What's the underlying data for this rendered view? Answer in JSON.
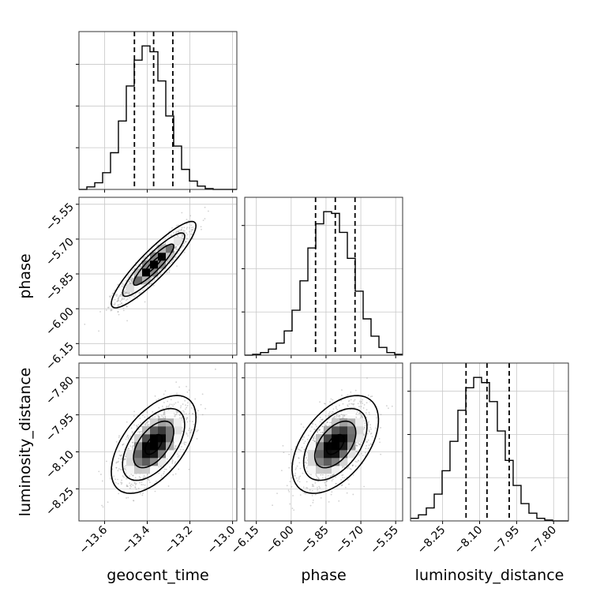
{
  "colors": {
    "background": "#ffffff",
    "axes_edge": "#333333",
    "grid": "#c8c8c8",
    "histogram": "#000000",
    "scatter": "#9a9a9a",
    "contour": "#000000",
    "quantile_line": "#000000"
  },
  "chart_data": {
    "type": "corner",
    "description_of_layout": "lower-triangular 3x3 grid",
    "grid": true,
    "parameters": [
      {
        "name": "geocent_time",
        "label": "geocent_time",
        "range": [
          -13.72,
          -12.98
        ],
        "ticks": [
          -13.6,
          -13.4,
          -13.2,
          -13.0
        ],
        "tick_labels": [
          "−13.6",
          "−13.4",
          "−13.2",
          "−13.0"
        ],
        "mean": -13.37,
        "sd": 0.08
      },
      {
        "name": "phase",
        "label": "phase",
        "range": [
          -6.2,
          -5.52
        ],
        "ticks": [
          -6.15,
          -6.0,
          -5.85,
          -5.7,
          -5.55
        ],
        "tick_labels": [
          "−6.15",
          "−6.00",
          "−5.85",
          "−5.70",
          "−5.55"
        ],
        "mean": -5.81,
        "sd": 0.075
      },
      {
        "name": "luminosity_distance",
        "label": "luminosity_distance",
        "range": [
          -8.38,
          -7.74
        ],
        "ticks": [
          -8.25,
          -8.1,
          -7.95,
          -7.8
        ],
        "tick_labels": [
          "−8.25",
          "−8.10",
          "−7.95",
          "−7.80"
        ],
        "mean": -8.07,
        "sd": 0.08
      }
    ],
    "quantiles": [
      {
        "param": "geocent_time",
        "values": [
          -13.46,
          -13.37,
          -13.28
        ]
      },
      {
        "param": "phase",
        "values": [
          -5.895,
          -5.81,
          -5.725
        ]
      },
      {
        "param": "luminosity_distance",
        "values": [
          -8.155,
          -8.07,
          -7.98
        ]
      }
    ],
    "histograms": [
      {
        "param": "geocent_time",
        "bin_edges": [
          -13.72,
          -13.683,
          -13.646,
          -13.609,
          -13.572,
          -13.535,
          -13.498,
          -13.461,
          -13.424,
          -13.387,
          -13.35,
          -13.313,
          -13.276,
          -13.239,
          -13.202,
          -13.165,
          -13.128,
          -13.091,
          -13.054,
          -13.017,
          -12.98
        ],
        "counts": [
          0,
          3,
          8,
          20,
          44,
          82,
          124,
          155,
          172,
          165,
          130,
          88,
          52,
          24,
          10,
          4,
          1,
          0,
          0,
          0
        ]
      },
      {
        "param": "phase",
        "bin_edges": [
          -6.2,
          -6.166,
          -6.132,
          -6.098,
          -6.064,
          -6.03,
          -5.996,
          -5.962,
          -5.928,
          -5.894,
          -5.86,
          -5.826,
          -5.792,
          -5.758,
          -5.724,
          -5.69,
          -5.656,
          -5.622,
          -5.588,
          -5.554,
          -5.52
        ],
        "counts": [
          0,
          1,
          3,
          7,
          14,
          28,
          52,
          86,
          124,
          152,
          166,
          164,
          142,
          112,
          74,
          42,
          22,
          9,
          3,
          1
        ]
      },
      {
        "param": "luminosity_distance",
        "bin_edges": [
          -8.38,
          -8.348,
          -8.316,
          -8.284,
          -8.252,
          -8.22,
          -8.188,
          -8.156,
          -8.124,
          -8.092,
          -8.06,
          -8.028,
          -7.996,
          -7.964,
          -7.932,
          -7.9,
          -7.868,
          -7.836,
          -7.804,
          -7.772,
          -7.74
        ],
        "counts": [
          3,
          7,
          15,
          31,
          58,
          92,
          128,
          154,
          166,
          160,
          138,
          104,
          70,
          41,
          20,
          9,
          3,
          1,
          0,
          0
        ]
      }
    ],
    "pairs": [
      {
        "x": "geocent_time",
        "y": "phase",
        "correlation": 0.9
      },
      {
        "x": "geocent_time",
        "y": "luminosity_distance",
        "correlation": 0.55
      },
      {
        "x": "phase",
        "y": "luminosity_distance",
        "correlation": 0.5
      }
    ]
  }
}
